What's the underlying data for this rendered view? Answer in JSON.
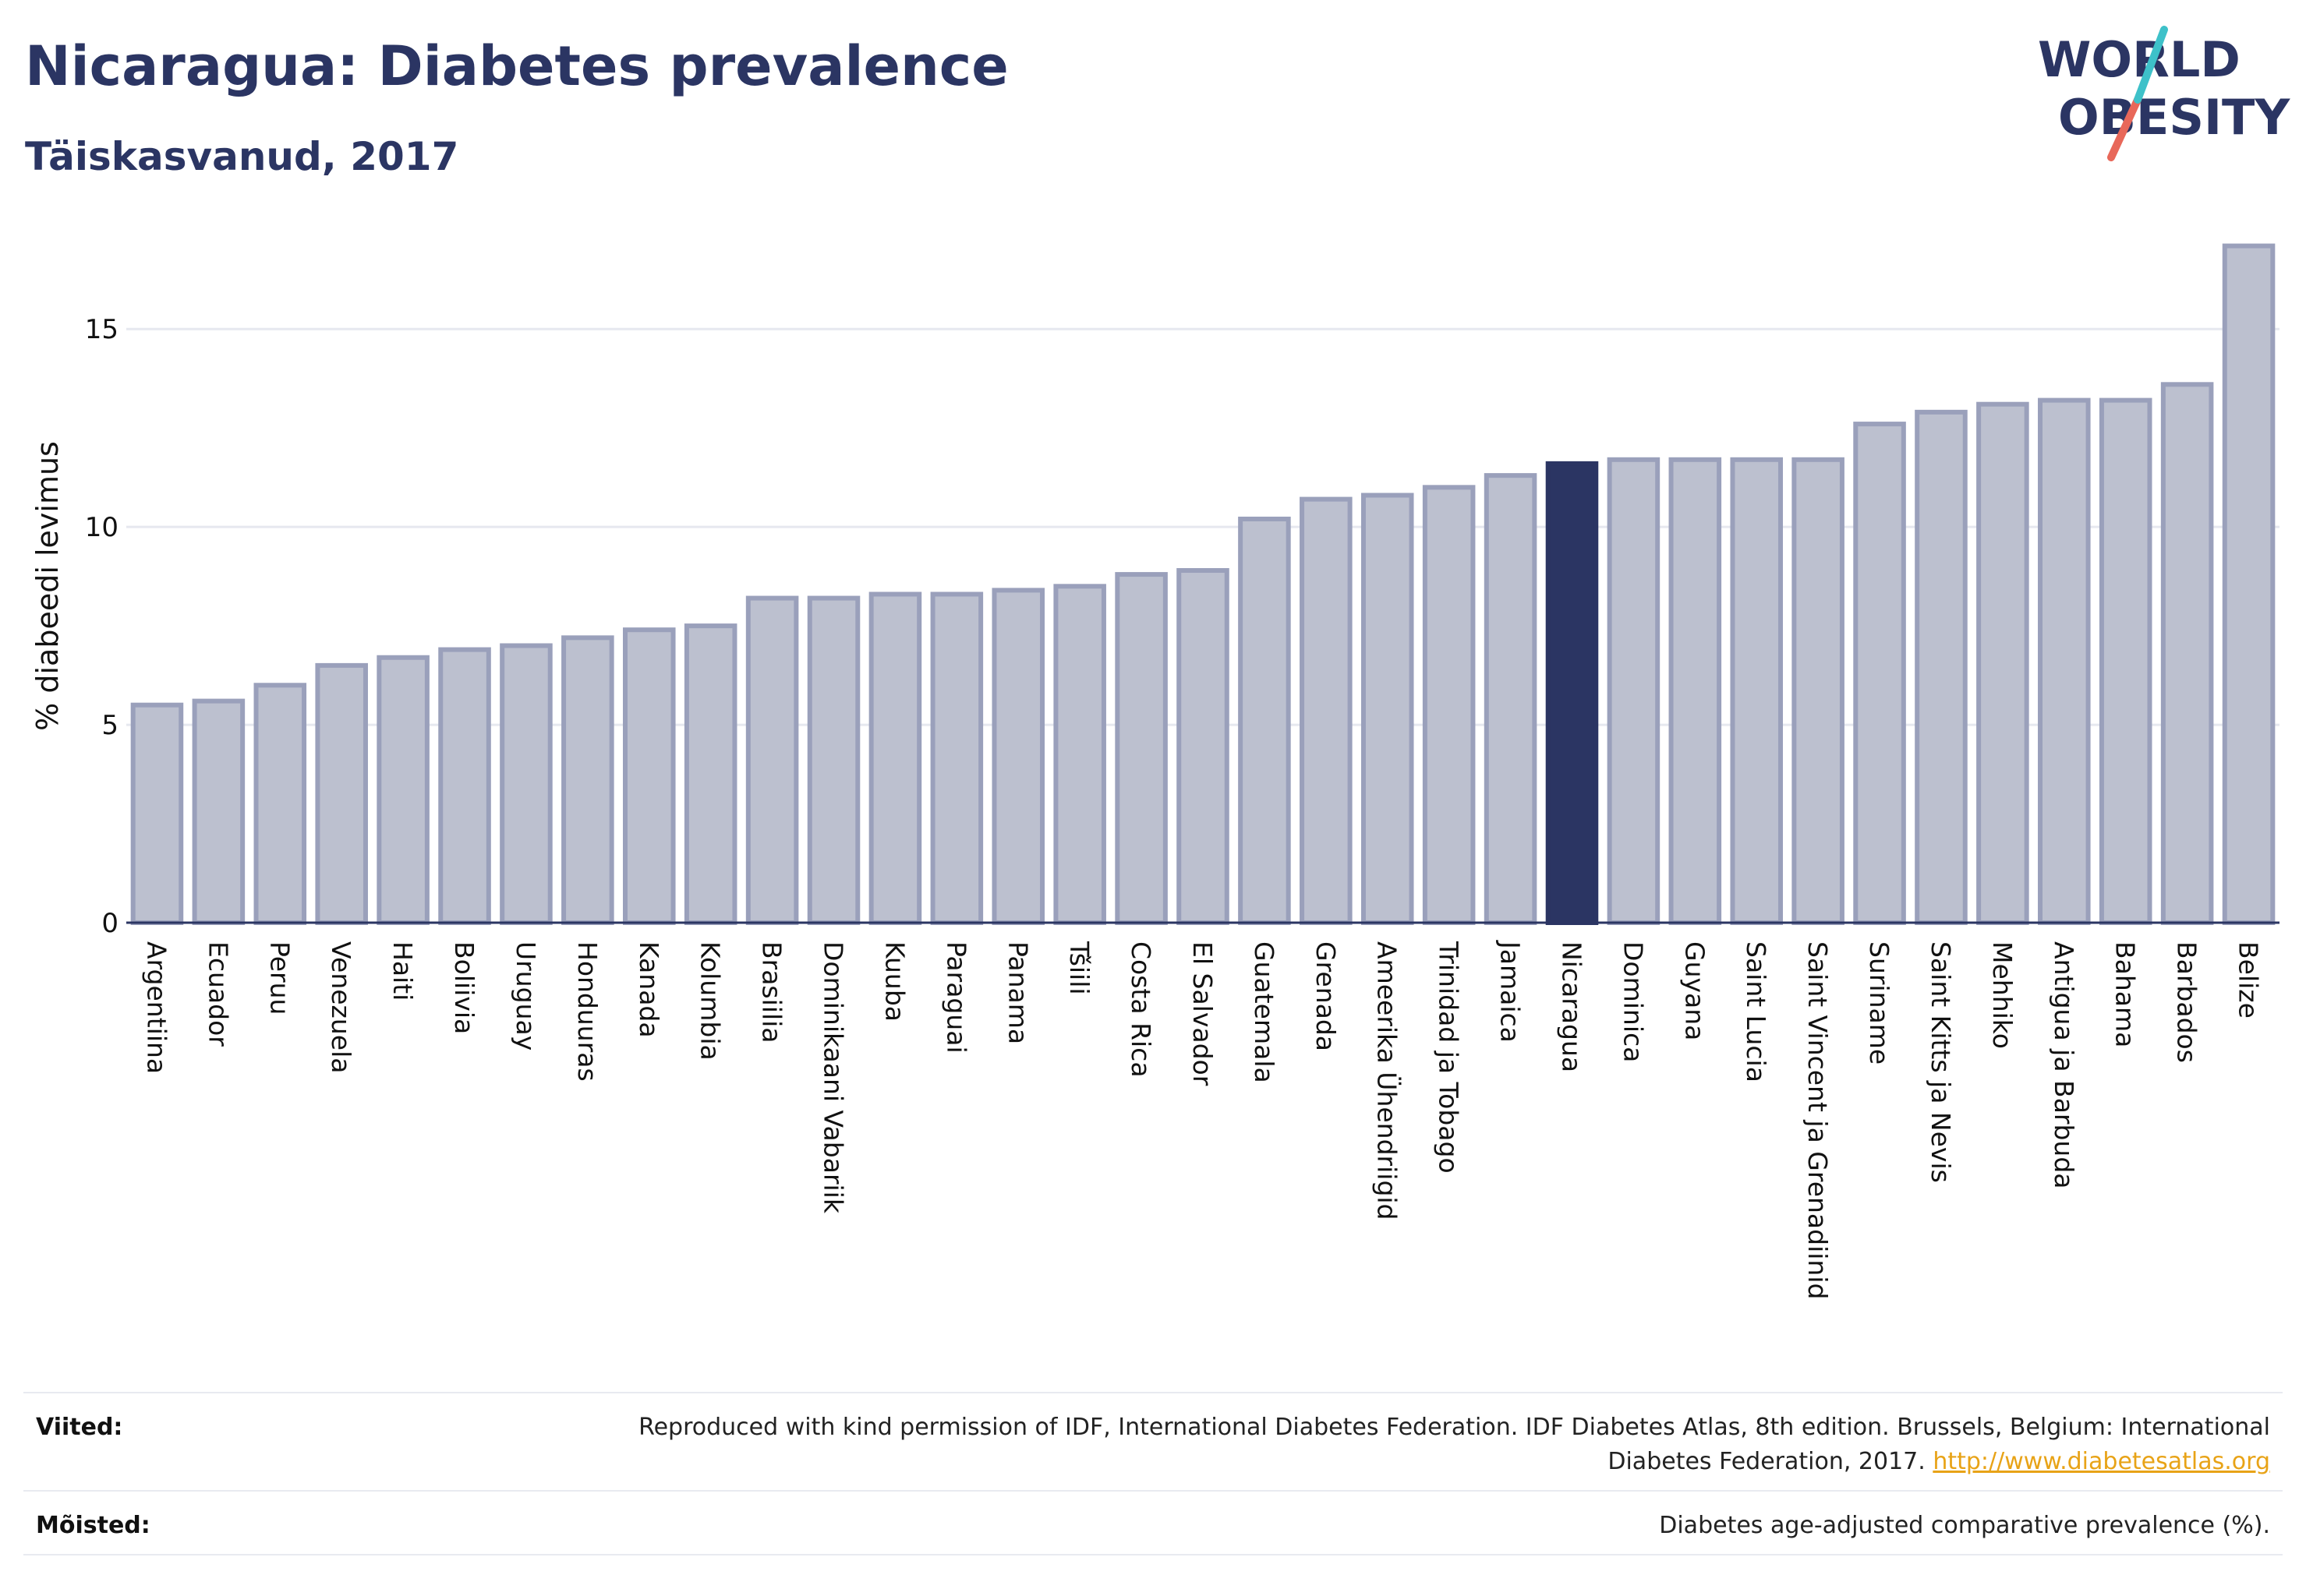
{
  "header": {
    "title": "Nicaragua: Diabetes prevalence",
    "subtitle": "Täiskasvanud, 2017"
  },
  "logo": {
    "line1": "WORLD",
    "line2": "OBESITY"
  },
  "colors": {
    "highlight": "#2b3563",
    "bar_fill": "#bcc0cf",
    "bar_stroke": "#9aa0bb",
    "grid": "#e6e8ef",
    "axis": "#2b3563",
    "link": "#e8a317",
    "logo_teal": "#3ec1c9",
    "logo_coral": "#e8685a"
  },
  "chart_data": {
    "type": "bar",
    "ylabel": "% diabeedi levimus",
    "ylim": [
      0,
      17.8
    ],
    "yticks": [
      0,
      5,
      10,
      15
    ],
    "highlight": "Nicaragua",
    "grid": "horizontal",
    "categories": [
      "Argentiina",
      "Ecuador",
      "Peruu",
      "Venezuela",
      "Haiti",
      "Boliivia",
      "Uruguay",
      "Honduuras",
      "Kanada",
      "Kolumbia",
      "Brasiilia",
      "Dominikaani Vabariik",
      "Kuuba",
      "Paraguai",
      "Panama",
      "Tšiili",
      "Costa Rica",
      "El Salvador",
      "Guatemala",
      "Grenada",
      "Ameerika Ühendriigid",
      "Trinidad ja Tobago",
      "Jamaica",
      "Nicaragua",
      "Dominica",
      "Guyana",
      "Saint Lucia",
      "Saint Vincent ja Grenadiinid",
      "Suriname",
      "Saint Kitts ja Nevis",
      "Mehhiko",
      "Antigua ja Barbuda",
      "Bahama",
      "Barbados",
      "Belize"
    ],
    "values": [
      5.5,
      5.6,
      6.0,
      6.5,
      6.7,
      6.9,
      7.0,
      7.2,
      7.4,
      7.5,
      8.2,
      8.2,
      8.3,
      8.3,
      8.4,
      8.5,
      8.8,
      8.9,
      10.2,
      10.7,
      10.8,
      11.0,
      11.3,
      11.6,
      11.7,
      11.7,
      11.7,
      11.7,
      12.6,
      12.9,
      13.1,
      13.2,
      13.2,
      13.6,
      17.1
    ]
  },
  "footer": {
    "references_label": "Viited:",
    "references_text": "Reproduced with kind permission of IDF, International Diabetes Federation. IDF Diabetes Atlas, 8th edition. Brussels, Belgium: International Diabetes Federation, 2017.",
    "references_link": "http://www.diabetesatlas.org",
    "definitions_label": "Mõisted:",
    "definitions_text": "Diabetes age-adjusted comparative prevalence (%)."
  }
}
